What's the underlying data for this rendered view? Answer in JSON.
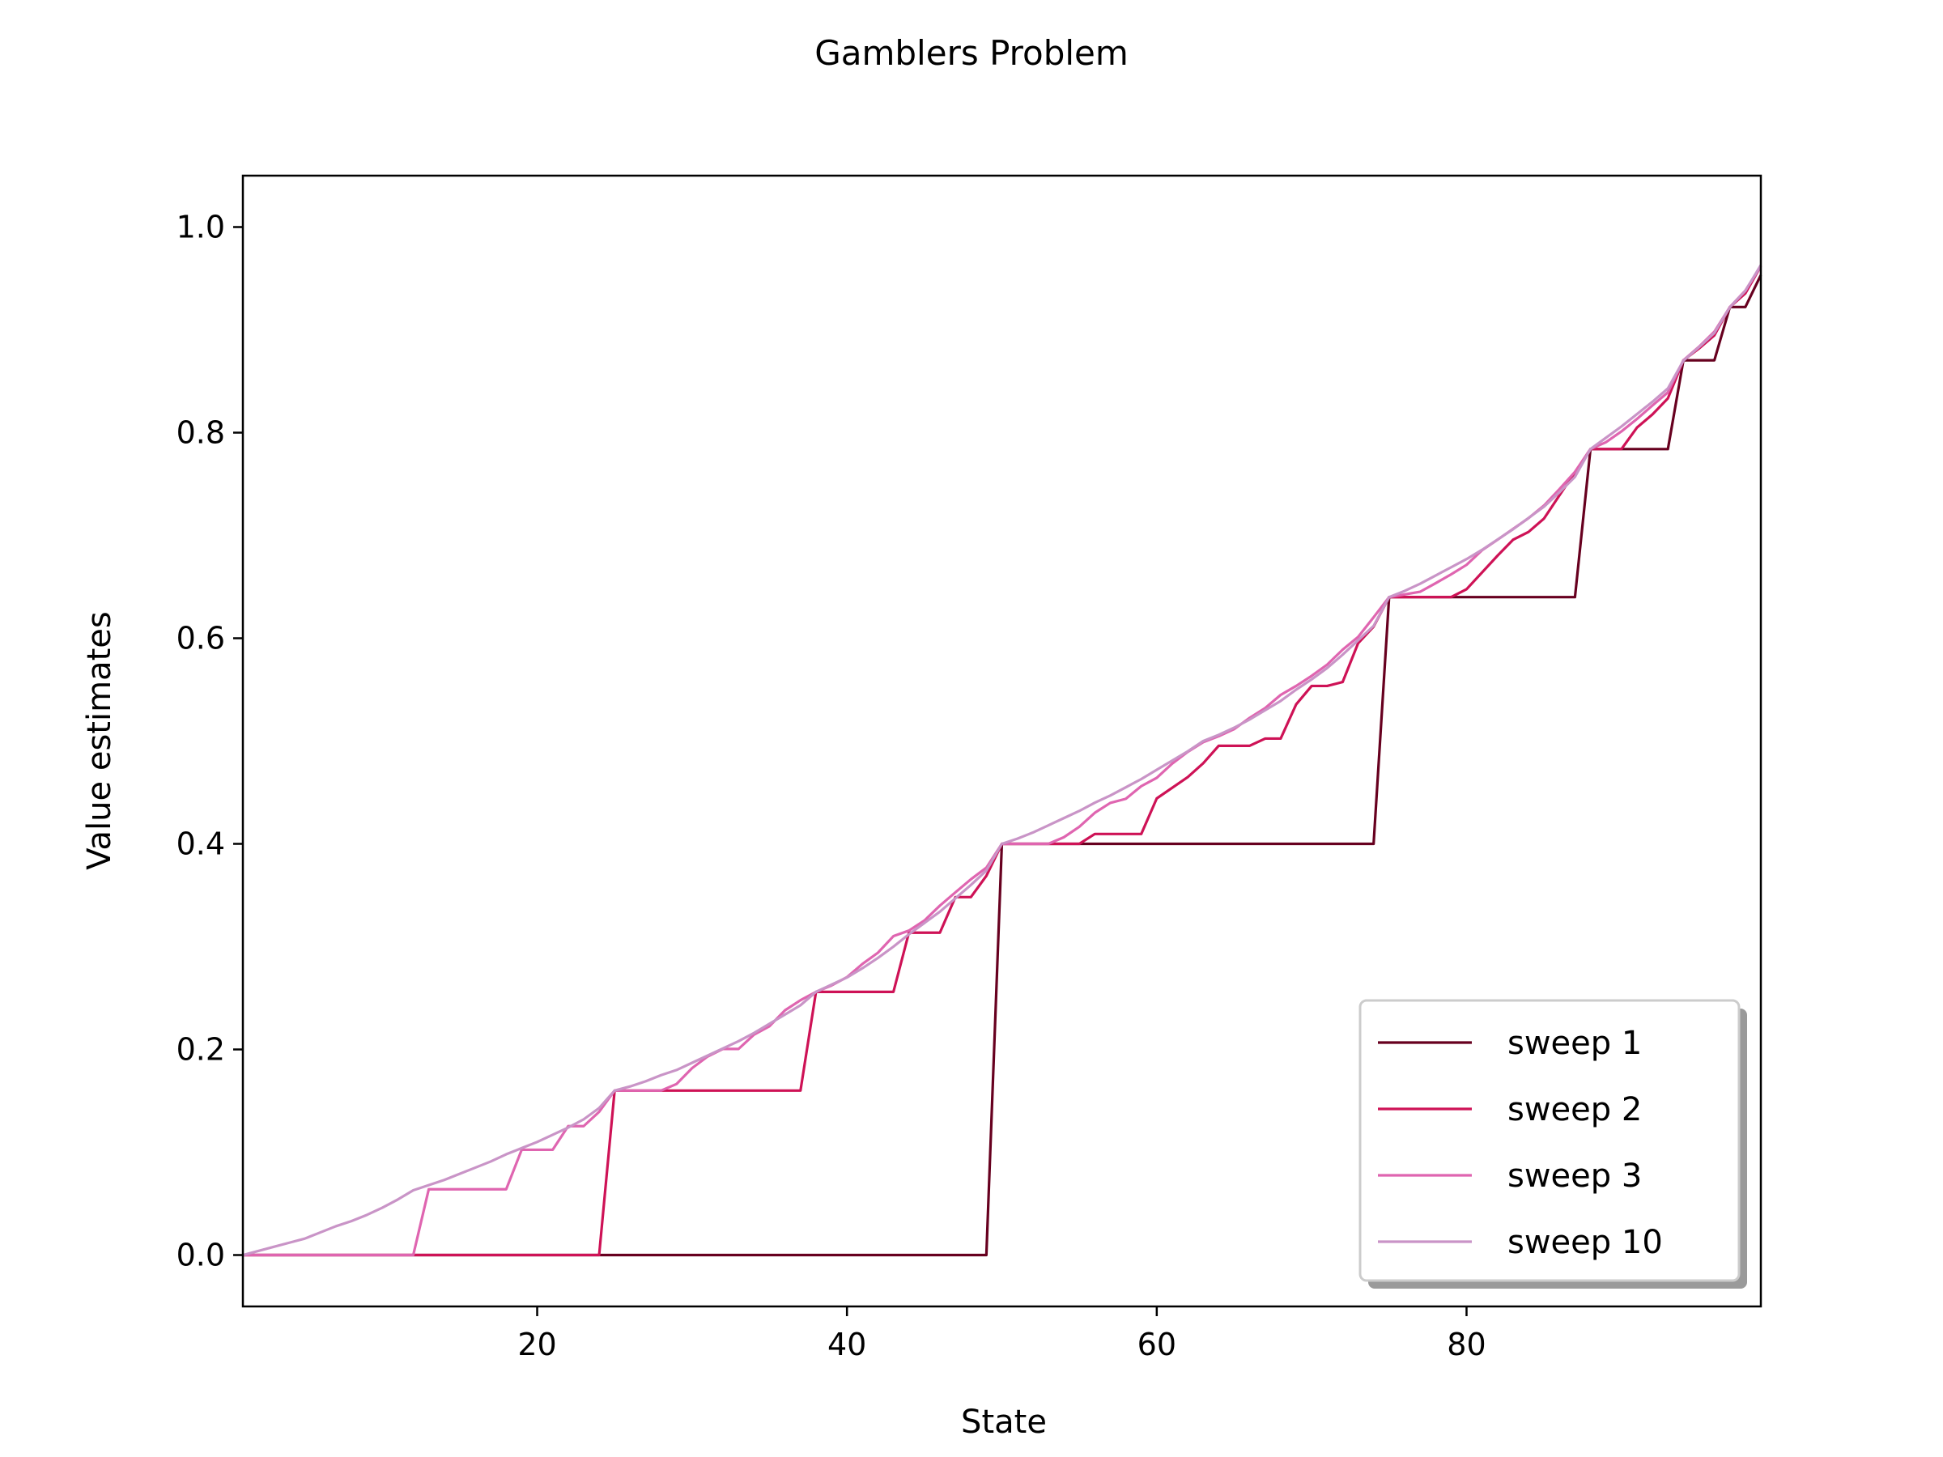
{
  "chart_data": {
    "type": "line",
    "title": "Gamblers Problem",
    "xlabel": "State",
    "ylabel": "Value estimates",
    "xlim": [
      1,
      99
    ],
    "ylim": [
      -0.05,
      1.05
    ],
    "xticks": [
      20,
      40,
      60,
      80
    ],
    "yticks": [
      0.0,
      0.2,
      0.4,
      0.6,
      0.8,
      1.0
    ],
    "xtick_labels": [
      "20",
      "40",
      "60",
      "80"
    ],
    "ytick_labels": [
      "0.0",
      "0.2",
      "0.4",
      "0.6",
      "0.8",
      "1.0"
    ],
    "grid": false,
    "legend_position": "bottom-right",
    "series": [
      {
        "name": "sweep 1",
        "color": "#67001f",
        "points": [
          [
            1,
            0
          ],
          [
            49,
            0
          ],
          [
            50,
            0.4
          ],
          [
            74,
            0.4
          ],
          [
            75,
            0.64
          ],
          [
            87,
            0.64
          ],
          [
            88,
            0.784
          ],
          [
            93,
            0.784
          ],
          [
            94,
            0.8704
          ],
          [
            96,
            0.8704
          ],
          [
            97,
            0.9222
          ],
          [
            98,
            0.9222
          ],
          [
            99,
            0.9533
          ]
        ]
      },
      {
        "name": "sweep 2",
        "color": "#ce1256",
        "points": [
          [
            1,
            0
          ],
          [
            24,
            0
          ],
          [
            25,
            0.16
          ],
          [
            37,
            0.16
          ],
          [
            38,
            0.256
          ],
          [
            43,
            0.256
          ],
          [
            44,
            0.3136
          ],
          [
            46,
            0.3136
          ],
          [
            47,
            0.3482
          ],
          [
            48,
            0.3482
          ],
          [
            49,
            0.3689
          ],
          [
            50,
            0.4
          ],
          [
            55,
            0.4
          ],
          [
            56,
            0.4096
          ],
          [
            59,
            0.4096
          ],
          [
            60,
            0.4442
          ],
          [
            62,
            0.4649
          ],
          [
            63,
            0.4784
          ],
          [
            64,
            0.4954
          ],
          [
            66,
            0.4954
          ],
          [
            67,
            0.5024
          ],
          [
            68,
            0.5024
          ],
          [
            69,
            0.5357
          ],
          [
            70,
            0.5536
          ],
          [
            71,
            0.5536
          ],
          [
            72,
            0.5574
          ],
          [
            73,
            0.5952
          ],
          [
            74,
            0.6113
          ],
          [
            75,
            0.64
          ],
          [
            79,
            0.64
          ],
          [
            80,
            0.6477
          ],
          [
            82,
            0.6803
          ],
          [
            83,
            0.6958
          ],
          [
            84,
            0.7034
          ],
          [
            85,
            0.7164
          ],
          [
            86,
            0.7391
          ],
          [
            87,
            0.7614
          ],
          [
            88,
            0.784
          ],
          [
            90,
            0.784
          ],
          [
            91,
            0.8049
          ],
          [
            92,
            0.8177
          ],
          [
            93,
            0.8334
          ],
          [
            94,
            0.8704
          ],
          [
            95,
            0.8818
          ],
          [
            96,
            0.8947
          ],
          [
            97,
            0.9222
          ],
          [
            98,
            0.9355
          ],
          [
            99,
            0.9619
          ]
        ]
      },
      {
        "name": "sweep 3",
        "color": "#df65b0",
        "points": [
          [
            1,
            0
          ],
          [
            12,
            0
          ],
          [
            13,
            0.064
          ],
          [
            18,
            0.064
          ],
          [
            19,
            0.1024
          ],
          [
            21,
            0.1024
          ],
          [
            22,
            0.1254
          ],
          [
            23,
            0.1254
          ],
          [
            24,
            0.1393
          ],
          [
            25,
            0.16
          ],
          [
            28,
            0.16
          ],
          [
            29,
            0.1664
          ],
          [
            30,
            0.1818
          ],
          [
            31,
            0.1931
          ],
          [
            32,
            0.2005
          ],
          [
            33,
            0.2005
          ],
          [
            34,
            0.2144
          ],
          [
            35,
            0.2226
          ],
          [
            36,
            0.2381
          ],
          [
            37,
            0.2479
          ],
          [
            38,
            0.256
          ],
          [
            39,
            0.2622
          ],
          [
            40,
            0.2703
          ],
          [
            41,
            0.2832
          ],
          [
            42,
            0.2941
          ],
          [
            43,
            0.3102
          ],
          [
            44,
            0.3156
          ],
          [
            45,
            0.3254
          ],
          [
            46,
            0.3399
          ],
          [
            47,
            0.3528
          ],
          [
            48,
            0.3655
          ],
          [
            49,
            0.3768
          ],
          [
            50,
            0.4
          ],
          [
            53,
            0.4
          ],
          [
            54,
            0.4064
          ],
          [
            55,
            0.4166
          ],
          [
            56,
            0.4302
          ],
          [
            57,
            0.4398
          ],
          [
            58,
            0.4438
          ],
          [
            59,
            0.4561
          ],
          [
            60,
            0.4642
          ],
          [
            61,
            0.4781
          ],
          [
            62,
            0.4895
          ],
          [
            63,
            0.4989
          ],
          [
            64,
            0.5047
          ],
          [
            65,
            0.5116
          ],
          [
            66,
            0.5226
          ],
          [
            67,
            0.5321
          ],
          [
            68,
            0.5449
          ],
          [
            69,
            0.5536
          ],
          [
            70,
            0.5634
          ],
          [
            71,
            0.5743
          ],
          [
            72,
            0.5889
          ],
          [
            73,
            0.6013
          ],
          [
            74,
            0.6204
          ],
          [
            75,
            0.64
          ],
          [
            77,
            0.6452
          ],
          [
            78,
            0.6535
          ],
          [
            79,
            0.6621
          ],
          [
            80,
            0.6714
          ],
          [
            81,
            0.6856
          ],
          [
            82,
            0.6958
          ],
          [
            83,
            0.7063
          ],
          [
            84,
            0.7168
          ],
          [
            85,
            0.7291
          ],
          [
            86,
            0.7451
          ],
          [
            87,
            0.7619
          ],
          [
            88,
            0.784
          ],
          [
            89,
            0.7907
          ],
          [
            90,
            0.8012
          ],
          [
            91,
            0.8133
          ],
          [
            92,
            0.8264
          ],
          [
            93,
            0.8392
          ],
          [
            94,
            0.8704
          ],
          [
            95,
            0.8835
          ],
          [
            96,
            0.8982
          ],
          [
            97,
            0.9222
          ],
          [
            98,
            0.9382
          ],
          [
            99,
            0.9619
          ]
        ]
      },
      {
        "name": "sweep 10",
        "color": "#c994c7",
        "points": [
          [
            1,
            0
          ],
          [
            2,
            0.004
          ],
          [
            3,
            0.008
          ],
          [
            4,
            0.012
          ],
          [
            5,
            0.016
          ],
          [
            6,
            0.022
          ],
          [
            7,
            0.028
          ],
          [
            8,
            0.033
          ],
          [
            9,
            0.039
          ],
          [
            10,
            0.046
          ],
          [
            11,
            0.054
          ],
          [
            12,
            0.063
          ],
          [
            13,
            0.068
          ],
          [
            14,
            0.073
          ],
          [
            15,
            0.079
          ],
          [
            16,
            0.085
          ],
          [
            17,
            0.091
          ],
          [
            18,
            0.098
          ],
          [
            19,
            0.104
          ],
          [
            20,
            0.11
          ],
          [
            21,
            0.117
          ],
          [
            22,
            0.124
          ],
          [
            23,
            0.132
          ],
          [
            24,
            0.143
          ],
          [
            25,
            0.16
          ],
          [
            26,
            0.164
          ],
          [
            27,
            0.169
          ],
          [
            28,
            0.175
          ],
          [
            29,
            0.18
          ],
          [
            30,
            0.187
          ],
          [
            31,
            0.194
          ],
          [
            32,
            0.201
          ],
          [
            33,
            0.208
          ],
          [
            34,
            0.216
          ],
          [
            35,
            0.225
          ],
          [
            36,
            0.234
          ],
          [
            37,
            0.243
          ],
          [
            38,
            0.256
          ],
          [
            39,
            0.263
          ],
          [
            40,
            0.27
          ],
          [
            41,
            0.279
          ],
          [
            42,
            0.289
          ],
          [
            43,
            0.3
          ],
          [
            44,
            0.312
          ],
          [
            45,
            0.323
          ],
          [
            46,
            0.334
          ],
          [
            47,
            0.347
          ],
          [
            48,
            0.36
          ],
          [
            49,
            0.374
          ],
          [
            50,
            0.4
          ],
          [
            51,
            0.405
          ],
          [
            52,
            0.411
          ],
          [
            53,
            0.418
          ],
          [
            54,
            0.425
          ],
          [
            55,
            0.432
          ],
          [
            56,
            0.44
          ],
          [
            57,
            0.447
          ],
          [
            58,
            0.455
          ],
          [
            59,
            0.463
          ],
          [
            60,
            0.472
          ],
          [
            61,
            0.481
          ],
          [
            62,
            0.49
          ],
          [
            63,
            0.5
          ],
          [
            64,
            0.506
          ],
          [
            65,
            0.513
          ],
          [
            66,
            0.521
          ],
          [
            67,
            0.53
          ],
          [
            68,
            0.539
          ],
          [
            69,
            0.55
          ],
          [
            70,
            0.56
          ],
          [
            71,
            0.571
          ],
          [
            72,
            0.584
          ],
          [
            73,
            0.598
          ],
          [
            74,
            0.612
          ],
          [
            75,
            0.64
          ],
          [
            76,
            0.646
          ],
          [
            77,
            0.653
          ],
          [
            78,
            0.661
          ],
          [
            79,
            0.669
          ],
          [
            80,
            0.677
          ],
          [
            81,
            0.686
          ],
          [
            82,
            0.696
          ],
          [
            83,
            0.706
          ],
          [
            84,
            0.717
          ],
          [
            85,
            0.728
          ],
          [
            86,
            0.742
          ],
          [
            87,
            0.757
          ],
          [
            88,
            0.784
          ],
          [
            89,
            0.795
          ],
          [
            90,
            0.806
          ],
          [
            91,
            0.818
          ],
          [
            92,
            0.83
          ],
          [
            93,
            0.843
          ],
          [
            94,
            0.87
          ],
          [
            95,
            0.883
          ],
          [
            96,
            0.897
          ],
          [
            97,
            0.922
          ],
          [
            98,
            0.938
          ],
          [
            99,
            0.963
          ]
        ]
      }
    ]
  }
}
